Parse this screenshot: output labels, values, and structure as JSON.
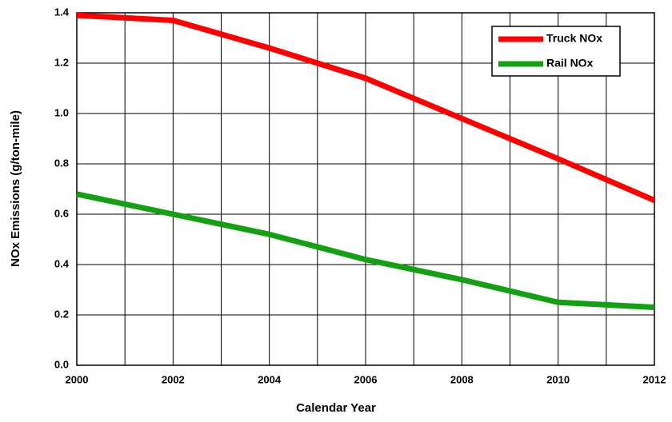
{
  "chart_data": {
    "type": "line",
    "x_label": "Calendar Year",
    "y_label": "NOx Emissions (g/ton-mile)",
    "x": [
      2000,
      2002,
      2004,
      2006,
      2008,
      2010,
      2012
    ],
    "series": [
      {
        "name": "Truck NOx",
        "color": "#ff0000",
        "values": [
          1.39,
          1.37,
          1.26,
          1.14,
          0.98,
          0.82,
          0.655
        ]
      },
      {
        "name": "Rail NOx",
        "color": "#13a013",
        "values": [
          0.68,
          0.6,
          0.52,
          0.42,
          0.34,
          0.25,
          0.23
        ]
      }
    ],
    "xlim": [
      2000,
      2012
    ],
    "xticks": [
      2000,
      2002,
      2004,
      2006,
      2008,
      2010,
      2012
    ],
    "xminorgrid": [
      2001,
      2003,
      2005,
      2007,
      2009,
      2011
    ],
    "ylim": [
      0,
      1.4
    ],
    "yticks": [
      {
        "value": 0,
        "label": "0.0"
      },
      0.2,
      0.4,
      0.6,
      0.8,
      {
        "value": 1,
        "label": "1.0"
      },
      1.2,
      1.4
    ],
    "grid": true,
    "legend": "upper right"
  }
}
